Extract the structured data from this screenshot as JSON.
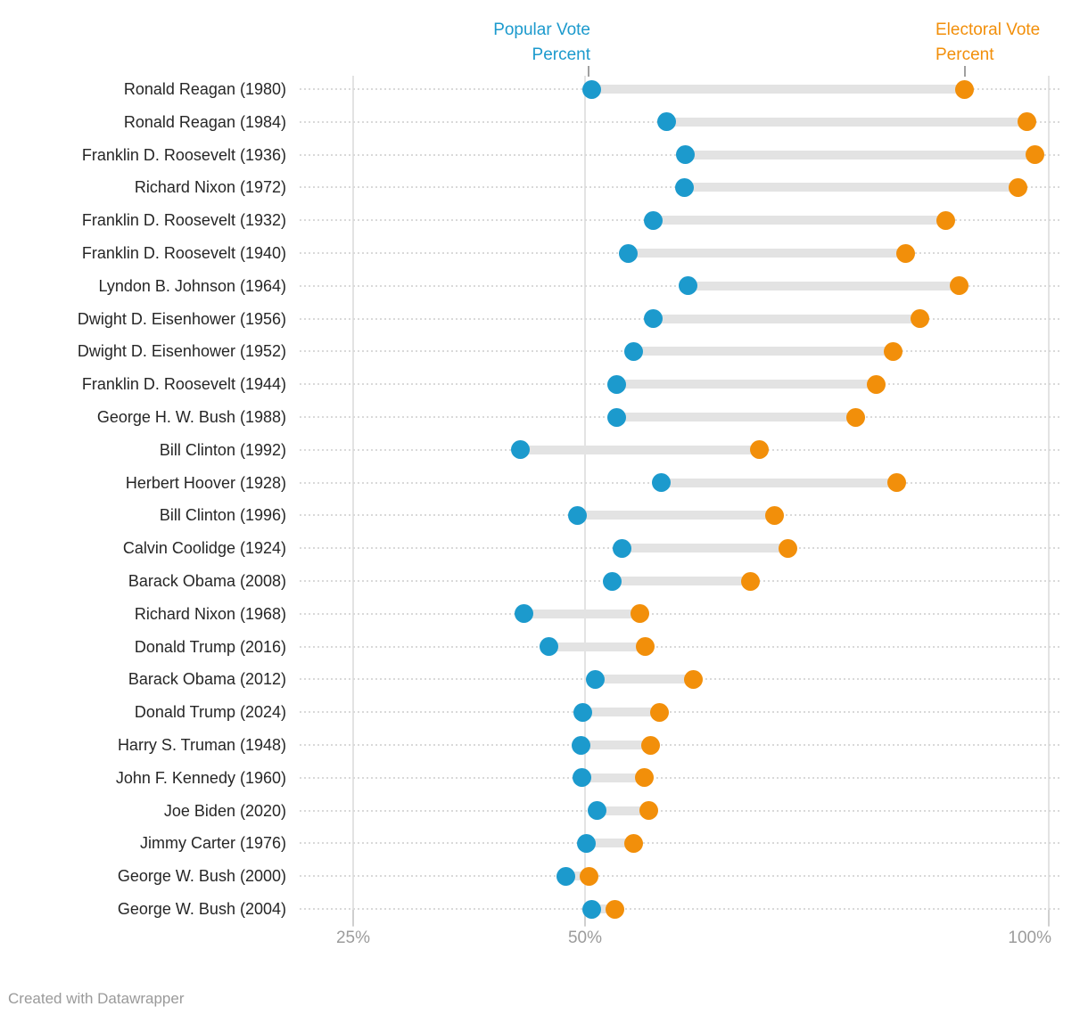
{
  "legend": {
    "popular": {
      "line1": "Popular Vote",
      "line2": "Percent"
    },
    "electoral": {
      "line1": "Electoral Vote",
      "line2": "Percent"
    }
  },
  "axis": {
    "ticks": [
      "25%",
      "50%",
      "100%"
    ]
  },
  "footer": {
    "credit": "Created with Datawrapper"
  },
  "colors": {
    "popular": "#1c9acd",
    "electoral": "#f28f0a",
    "bar": "#e3e3e3",
    "label_text": "#262626",
    "axis_text": "#9c9c9c"
  },
  "chart_data": {
    "type": "dumbbell",
    "title": "",
    "xlabel": "",
    "ylabel": "",
    "x_ticks": [
      25,
      50,
      100
    ],
    "xlim": [
      19,
      101.5
    ],
    "grid": "vertical lines at ticks, dotted horizontal row guides",
    "legend_position": "top, pointing at first row dots",
    "categories": [
      "Ronald Reagan (1980)",
      "Ronald Reagan (1984)",
      "Franklin D. Roosevelt (1936)",
      "Richard Nixon (1972)",
      "Franklin D. Roosevelt (1932)",
      "Franklin D. Roosevelt (1940)",
      "Lyndon B. Johnson (1964)",
      "Dwight D. Eisenhower (1956)",
      "Dwight D. Eisenhower (1952)",
      "Franklin D. Roosevelt (1944)",
      "George H. W. Bush (1988)",
      "Bill Clinton (1992)",
      "Herbert Hoover (1928)",
      "Bill Clinton (1996)",
      "Calvin Coolidge (1924)",
      "Barack Obama (2008)",
      "Richard Nixon (1968)",
      "Donald Trump (2016)",
      "Barack Obama (2012)",
      "Donald Trump (2024)",
      "Harry S. Truman (1948)",
      "John F. Kennedy (1960)",
      "Joe Biden (2020)",
      "Jimmy Carter (1976)",
      "George W. Bush (2000)",
      "George W. Bush (2004)"
    ],
    "series": [
      {
        "name": "Popular Vote Percent",
        "color": "#1c9acd",
        "values": [
          50.7,
          58.8,
          60.8,
          60.7,
          57.4,
          54.7,
          61.1,
          57.4,
          55.2,
          53.4,
          53.4,
          43.0,
          58.2,
          49.2,
          54.0,
          52.9,
          43.4,
          46.1,
          51.1,
          49.8,
          49.6,
          49.7,
          51.3,
          50.1,
          47.9,
          50.7
        ]
      },
      {
        "name": "Electoral Vote Percent",
        "color": "#f28f0a",
        "values": [
          90.9,
          97.6,
          98.5,
          96.7,
          88.9,
          84.6,
          90.3,
          86.1,
          83.2,
          81.4,
          79.2,
          68.8,
          83.6,
          70.4,
          71.9,
          67.8,
          55.9,
          56.5,
          61.7,
          58.0,
          57.1,
          56.4,
          56.9,
          55.2,
          50.4,
          53.2
        ]
      }
    ]
  }
}
